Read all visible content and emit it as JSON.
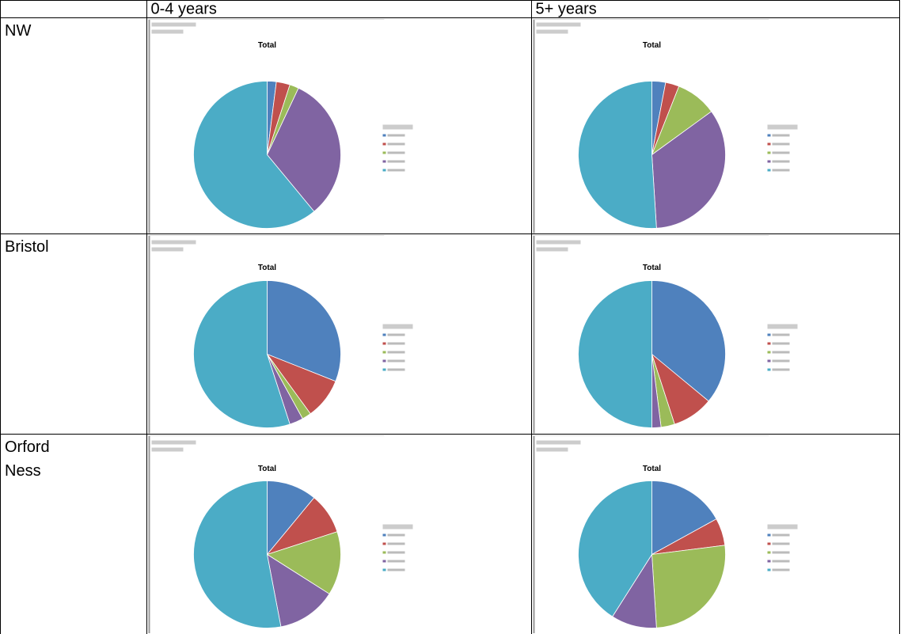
{
  "table": {
    "header": [
      "0-4 years",
      "5+ years"
    ],
    "colors": [
      "#4f81bd",
      "#c0504d",
      "#9bbb59",
      "#8064a2",
      "#4bacc6"
    ],
    "rows": [
      {
        "label": [
          "NW"
        ],
        "charts": [
          {
            "title": "Total",
            "values": [
              2,
              3,
              2,
              32,
              61
            ]
          },
          {
            "title": "Total",
            "values": [
              3,
              3,
              9,
              34,
              51
            ]
          }
        ]
      },
      {
        "label": [
          "Bristol"
        ],
        "charts": [
          {
            "title": "Total",
            "values": [
              31,
              9,
              2,
              3,
              55
            ]
          },
          {
            "title": "Total",
            "values": [
              36,
              9,
              3,
              2,
              50
            ]
          }
        ]
      },
      {
        "label": [
          "Orford",
          "Ness"
        ],
        "charts": [
          {
            "title": "Total",
            "values": [
              11,
              9,
              14,
              13,
              53
            ]
          },
          {
            "title": "Total",
            "values": [
              17,
              6,
              26,
              10,
              41
            ]
          }
        ]
      }
    ]
  }
}
